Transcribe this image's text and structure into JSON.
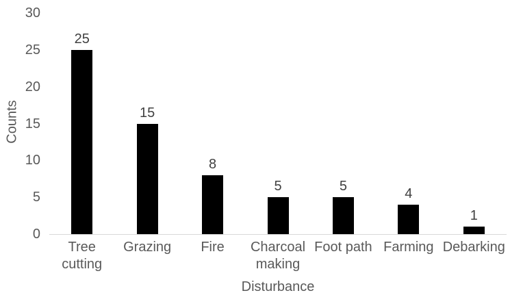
{
  "chart_data": {
    "type": "bar",
    "title": "",
    "xlabel": "Disturbance",
    "ylabel": "Counts",
    "categories": [
      "Tree cutting",
      "Grazing",
      "Fire",
      "Charcoal making",
      "Foot path",
      "Farming",
      "Debarking"
    ],
    "values": [
      25,
      15,
      8,
      5,
      5,
      4,
      1
    ],
    "yticks": [
      0,
      5,
      10,
      15,
      20,
      25,
      30
    ],
    "ylim": [
      0,
      30
    ],
    "grid": false,
    "legend": false,
    "data_labels_shown": true,
    "colors": {
      "bar": "#000000",
      "axis_line": "#d9d9d9",
      "tick_label": "#595959",
      "data_label": "#404040",
      "axis_title": "#595959",
      "background": "#ffffff"
    }
  }
}
